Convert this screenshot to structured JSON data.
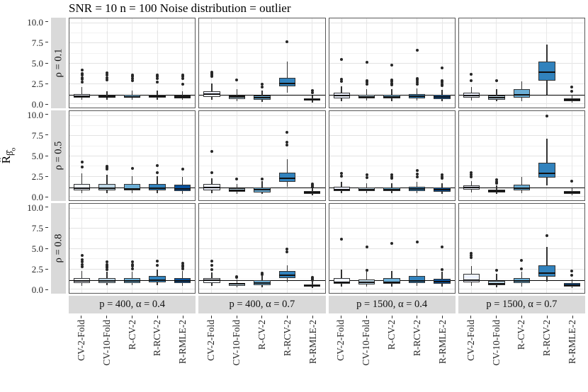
{
  "title": "SNR = 10 n = 100 Noise distribution = outlier",
  "y_axis_label": {
    "main": "R̂",
    "sub": "β̂",
    "subsub": "o"
  },
  "chart_data": {
    "type": "boxplot",
    "title": "SNR = 10 n = 100 Noise distribution = outlier",
    "ylabel": "R̂_β̂o",
    "ylim": [
      0,
      10
    ],
    "y_expand": 0.5,
    "y_ticks": [
      10.0,
      7.5,
      5.0,
      2.5,
      0.0
    ],
    "y_tick_labels": [
      "10.0",
      "7.5",
      "5.0",
      "2.5",
      "0.0"
    ],
    "reference_line_y": 1.0,
    "grid": "major-and-minor",
    "legend": "none",
    "methods": [
      "CV-2-Fold",
      "CV-10-Fold",
      "R-CV-2",
      "R-RCV-2",
      "R-RMLE-2"
    ],
    "box_fill_colors": [
      "#eff3ff",
      "#bdd7e7",
      "#6baed6",
      "#3182bd",
      "#08519c"
    ],
    "facet_rows": [
      "ρ = 0.1",
      "ρ = 0.5",
      "ρ = 0.8"
    ],
    "facet_cols": [
      "p = 400, α = 0.4",
      "p = 400, α = 0.7",
      "p = 1500, α = 0.4",
      "p = 1500, α = 0.7"
    ],
    "box_format": [
      "whisker_low",
      "q1",
      "median",
      "q3",
      "whisker_high"
    ],
    "panels": [
      {
        "row": 0,
        "col": 0,
        "boxes": [
          {
            "b": [
              0.45,
              0.72,
              0.92,
              1.12,
              2.0
            ],
            "o": [
              2.6,
              3.0,
              3.2,
              3.5,
              3.7,
              4.1
            ]
          },
          {
            "b": [
              0.5,
              0.7,
              0.85,
              1.0,
              1.55
            ],
            "o": [
              2.9,
              3.2,
              3.5,
              3.8
            ]
          },
          {
            "b": [
              0.5,
              0.68,
              0.85,
              1.05,
              1.6
            ],
            "o": [
              2.8,
              3.1,
              3.3,
              3.5
            ]
          },
          {
            "b": [
              0.5,
              0.7,
              0.9,
              1.05,
              1.6
            ],
            "o": [
              2.6,
              3.1,
              3.3,
              3.5
            ]
          },
          {
            "b": [
              0.45,
              0.65,
              0.85,
              1.0,
              1.5
            ],
            "o": [
              2.4,
              3.1,
              3.3,
              3.5
            ]
          }
        ]
      },
      {
        "row": 0,
        "col": 1,
        "boxes": [
          {
            "b": [
              0.45,
              0.8,
              1.2,
              1.55,
              2.5
            ],
            "o": [
              3.3,
              3.5,
              3.65,
              3.85
            ]
          },
          {
            "b": [
              0.3,
              0.55,
              0.8,
              1.0,
              1.75
            ],
            "o": [
              2.9
            ]
          },
          {
            "b": [
              0.2,
              0.5,
              0.75,
              1.0,
              1.6
            ],
            "o": [
              2.05,
              2.4
            ]
          },
          {
            "b": [
              1.3,
              2.1,
              2.5,
              3.2,
              5.2
            ],
            "o": [
              7.6
            ]
          },
          {
            "b": [
              0.15,
              0.35,
              0.5,
              0.65,
              1.0
            ],
            "o": [
              1.3,
              1.6
            ]
          }
        ]
      },
      {
        "row": 0,
        "col": 2,
        "boxes": [
          {
            "b": [
              0.3,
              0.65,
              0.95,
              1.3,
              2.1
            ],
            "o": [
              2.75,
              2.95,
              5.4
            ]
          },
          {
            "b": [
              0.35,
              0.6,
              0.85,
              1.1,
              1.8
            ],
            "o": [
              2.4,
              2.6,
              2.8,
              5.1
            ]
          },
          {
            "b": [
              0.3,
              0.6,
              0.85,
              1.1,
              1.8
            ],
            "o": [
              2.3,
              2.5,
              2.7,
              2.9,
              4.7
            ]
          },
          {
            "b": [
              0.35,
              0.65,
              0.9,
              1.2,
              1.9
            ],
            "o": [
              2.4,
              2.6,
              2.9,
              3.1,
              6.6
            ]
          },
          {
            "b": [
              0.3,
              0.55,
              0.8,
              1.05,
              1.7
            ],
            "o": [
              2.2,
              2.4,
              2.6,
              2.8,
              4.4
            ]
          }
        ]
      },
      {
        "row": 0,
        "col": 3,
        "boxes": [
          {
            "b": [
              0.4,
              0.75,
              1.0,
              1.35,
              2.0
            ],
            "o": [
              2.85,
              3.6
            ]
          },
          {
            "b": [
              0.3,
              0.5,
              0.75,
              0.95,
              1.75
            ],
            "o": [
              2.8
            ]
          },
          {
            "b": [
              0.3,
              0.75,
              1.05,
              1.75,
              2.75
            ],
            "o": []
          },
          {
            "b": [
              1.1,
              2.85,
              3.85,
              5.2,
              7.3
            ],
            "o": []
          },
          {
            "b": [
              0.1,
              0.3,
              0.45,
              0.65,
              1.1
            ],
            "o": [
              1.5,
              2.0
            ]
          }
        ]
      },
      {
        "row": 1,
        "col": 0,
        "boxes": [
          {
            "b": [
              0.35,
              0.75,
              0.95,
              1.55,
              2.8
            ],
            "o": [
              3.6,
              4.2
            ]
          },
          {
            "b": [
              0.35,
              0.7,
              0.95,
              1.5,
              2.6
            ],
            "o": [
              3.3,
              3.5,
              3.65
            ]
          },
          {
            "b": [
              0.35,
              0.7,
              0.9,
              1.5,
              2.5
            ],
            "o": [
              3.4
            ]
          },
          {
            "b": [
              0.35,
              0.7,
              0.95,
              1.5,
              2.5
            ],
            "o": [
              2.9,
              3.8
            ]
          },
          {
            "b": [
              0.3,
              0.6,
              0.9,
              1.4,
              2.4
            ],
            "o": [
              3.3
            ]
          }
        ]
      },
      {
        "row": 1,
        "col": 1,
        "boxes": [
          {
            "b": [
              0.4,
              0.75,
              1.1,
              1.5,
              2.2
            ],
            "o": [
              2.9,
              5.5
            ]
          },
          {
            "b": [
              0.3,
              0.55,
              0.75,
              0.95,
              1.5
            ],
            "o": [
              2.1
            ]
          },
          {
            "b": [
              0.25,
              0.5,
              0.8,
              1.1,
              1.85
            ],
            "o": [
              2.1
            ]
          },
          {
            "b": [
              1.2,
              1.8,
              2.25,
              2.9,
              4.6
            ],
            "o": [
              6.3,
              6.7,
              7.9
            ]
          },
          {
            "b": [
              0.15,
              0.3,
              0.5,
              0.65,
              1.0
            ],
            "o": [
              1.2,
              1.35,
              1.55
            ]
          }
        ]
      },
      {
        "row": 1,
        "col": 2,
        "boxes": [
          {
            "b": [
              0.35,
              0.6,
              0.85,
              1.15,
              1.8
            ],
            "o": [
              2.5,
              2.8
            ]
          },
          {
            "b": [
              0.35,
              0.6,
              0.8,
              1.05,
              1.6
            ],
            "o": [
              2.3,
              2.6
            ]
          },
          {
            "b": [
              0.35,
              0.6,
              0.85,
              1.05,
              1.6
            ],
            "o": [
              2.2,
              2.4,
              2.6
            ]
          },
          {
            "b": [
              0.4,
              0.65,
              0.9,
              1.2,
              1.8
            ],
            "o": [
              2.4,
              2.7,
              3.2
            ]
          },
          {
            "b": [
              0.3,
              0.55,
              0.8,
              1.1,
              1.6
            ],
            "o": [
              2.2,
              2.4,
              2.6
            ]
          }
        ]
      },
      {
        "row": 1,
        "col": 3,
        "boxes": [
          {
            "b": [
              0.45,
              0.8,
              1.05,
              1.3,
              1.9
            ],
            "o": [
              2.4,
              2.6,
              2.9
            ]
          },
          {
            "b": [
              0.25,
              0.45,
              0.6,
              0.8,
              1.3
            ],
            "o": [
              1.6,
              1.75,
              2.0
            ]
          },
          {
            "b": [
              0.35,
              0.7,
              1.0,
              1.45,
              2.4
            ],
            "o": []
          },
          {
            "b": [
              1.3,
              2.3,
              2.85,
              4.1,
              7.1
            ],
            "o": [
              9.9
            ]
          },
          {
            "b": [
              0.15,
              0.3,
              0.45,
              0.6,
              1.0
            ],
            "o": [
              1.9
            ]
          }
        ]
      },
      {
        "row": 2,
        "col": 0,
        "boxes": [
          {
            "b": [
              0.4,
              0.75,
              1.0,
              1.3,
              2.2
            ],
            "o": [
              2.7,
              3.0,
              3.3,
              3.6,
              4.1
            ]
          },
          {
            "b": [
              0.45,
              0.75,
              1.0,
              1.3,
              2.1
            ],
            "o": [
              2.4,
              2.6,
              2.8,
              3.0,
              3.3
            ]
          },
          {
            "b": [
              0.45,
              0.75,
              1.0,
              1.3,
              2.1
            ],
            "o": [
              2.5,
              2.8,
              3.0,
              3.3
            ]
          },
          {
            "b": [
              0.5,
              0.8,
              1.05,
              1.6,
              2.4
            ],
            "o": [
              2.9,
              3.4
            ]
          },
          {
            "b": [
              0.4,
              0.7,
              0.95,
              1.35,
              2.2
            ],
            "o": [
              2.5,
              2.7,
              2.9,
              3.2
            ]
          }
        ]
      },
      {
        "row": 2,
        "col": 1,
        "boxes": [
          {
            "b": [
              0.35,
              0.75,
              1.05,
              1.35,
              2.0
            ],
            "o": [
              2.4,
              2.9,
              3.4
            ]
          },
          {
            "b": [
              0.2,
              0.4,
              0.6,
              0.75,
              1.2
            ],
            "o": [
              1.4,
              1.55
            ]
          },
          {
            "b": [
              0.2,
              0.5,
              0.7,
              1.05,
              1.6
            ],
            "o": [
              1.8,
              1.95
            ]
          },
          {
            "b": [
              0.8,
              1.3,
              1.7,
              2.2,
              2.9
            ],
            "o": [
              4.55,
              4.95
            ]
          },
          {
            "b": [
              0.1,
              0.25,
              0.4,
              0.55,
              0.9
            ],
            "o": [
              1.1,
              1.25,
              1.4
            ]
          }
        ]
      },
      {
        "row": 2,
        "col": 2,
        "boxes": [
          {
            "b": [
              0.3,
              0.6,
              0.85,
              1.35,
              2.4
            ],
            "o": [
              6.1
            ]
          },
          {
            "b": [
              0.3,
              0.55,
              0.8,
              1.2,
              2.1
            ],
            "o": [
              2.3,
              5.2
            ]
          },
          {
            "b": [
              0.3,
              0.6,
              0.85,
              1.3,
              2.2
            ],
            "o": [
              5.6
            ]
          },
          {
            "b": [
              0.35,
              0.7,
              1.0,
              1.6,
              2.5
            ],
            "o": [
              5.8
            ]
          },
          {
            "b": [
              0.3,
              0.6,
              0.9,
              1.25,
              2.1
            ],
            "o": [
              2.4,
              5.2
            ]
          }
        ]
      },
      {
        "row": 2,
        "col": 3,
        "boxes": [
          {
            "b": [
              0.35,
              0.85,
              1.1,
              1.85,
              2.8
            ],
            "o": [
              3.9,
              4.1,
              4.4
            ]
          },
          {
            "b": [
              0.2,
              0.45,
              0.65,
              1.0,
              1.9
            ],
            "o": [
              2.3
            ]
          },
          {
            "b": [
              0.3,
              0.75,
              1.0,
              1.3,
              2.1
            ],
            "o": [
              2.5,
              3.5
            ]
          },
          {
            "b": [
              0.9,
              1.5,
              1.95,
              2.9,
              5.2
            ],
            "o": [
              6.6
            ]
          },
          {
            "b": [
              0.1,
              0.3,
              0.5,
              0.75,
              1.2
            ],
            "o": [
              1.7,
              2.2
            ]
          }
        ]
      }
    ]
  }
}
